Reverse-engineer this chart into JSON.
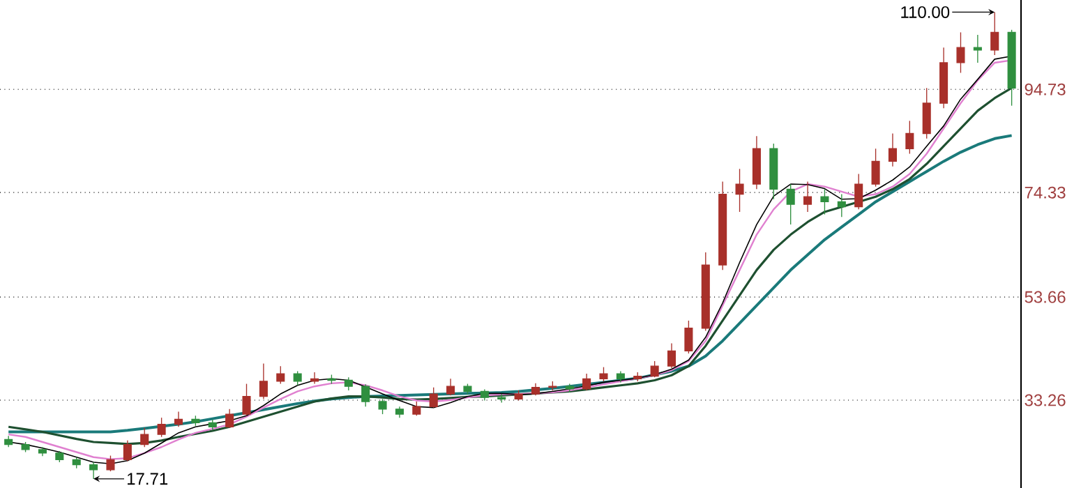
{
  "chart_data": {
    "type": "candlestick",
    "categories": [
      null,
      null,
      null,
      null,
      null,
      null,
      null,
      null,
      null,
      null,
      null,
      null,
      null,
      null,
      null,
      null,
      null,
      null,
      null,
      null,
      null,
      null,
      null,
      null,
      null,
      null,
      null,
      null,
      null,
      null,
      null,
      null,
      null,
      null,
      null,
      null,
      null,
      null,
      null,
      null,
      null,
      null,
      null,
      null,
      null,
      null,
      null,
      null,
      null,
      null,
      null,
      null,
      null,
      null,
      null,
      null,
      null,
      null,
      null,
      null
    ],
    "ohlc": [
      [
        25.5,
        26.2,
        24.0,
        24.5
      ],
      [
        24.5,
        25.0,
        23.0,
        23.5
      ],
      [
        23.5,
        24.0,
        22.2,
        22.8
      ],
      [
        22.8,
        23.2,
        21.0,
        21.5
      ],
      [
        21.5,
        22.0,
        19.8,
        20.5
      ],
      [
        20.5,
        21.0,
        17.71,
        19.5
      ],
      [
        19.5,
        22.3,
        19.2,
        21.5
      ],
      [
        21.5,
        25.3,
        21.2,
        24.5
      ],
      [
        24.5,
        27.8,
        24.0,
        26.5
      ],
      [
        26.5,
        29.8,
        26.0,
        28.5
      ],
      [
        28.5,
        31.0,
        28.0,
        29.5
      ],
      [
        29.5,
        30.2,
        28.2,
        28.8
      ],
      [
        28.8,
        29.4,
        27.3,
        28.0
      ],
      [
        28.0,
        31.5,
        27.8,
        30.5
      ],
      [
        30.5,
        36.5,
        30.2,
        34.0
      ],
      [
        34.0,
        40.5,
        33.5,
        37.0
      ],
      [
        37.0,
        40.0,
        36.5,
        38.5
      ],
      [
        38.5,
        39.0,
        36.2,
        37.0
      ],
      [
        37.0,
        38.8,
        36.5,
        37.5
      ],
      [
        37.5,
        38.3,
        36.5,
        37.2
      ],
      [
        37.2,
        37.8,
        35.2,
        36.0
      ],
      [
        36.0,
        36.4,
        32.0,
        33.0
      ],
      [
        33.0,
        33.5,
        30.5,
        31.5
      ],
      [
        31.5,
        32.0,
        29.8,
        30.5
      ],
      [
        30.5,
        33.0,
        30.2,
        32.0
      ],
      [
        32.0,
        35.8,
        31.8,
        34.5
      ],
      [
        34.5,
        37.5,
        34.2,
        36.0
      ],
      [
        36.0,
        36.5,
        34.5,
        35.0
      ],
      [
        35.0,
        35.4,
        33.2,
        33.8
      ],
      [
        33.8,
        34.5,
        32.8,
        33.5
      ],
      [
        33.5,
        35.2,
        33.2,
        34.5
      ],
      [
        34.5,
        36.6,
        34.2,
        35.8
      ],
      [
        35.8,
        37.0,
        35.2,
        36.0
      ],
      [
        36.0,
        36.5,
        34.8,
        35.5
      ],
      [
        35.5,
        38.5,
        35.2,
        37.5
      ],
      [
        37.5,
        39.8,
        37.0,
        38.5
      ],
      [
        38.5,
        39.0,
        36.8,
        37.5
      ],
      [
        37.5,
        38.8,
        37.0,
        38.0
      ],
      [
        38.0,
        41.0,
        37.8,
        40.0
      ],
      [
        40.0,
        44.5,
        39.6,
        43.0
      ],
      [
        43.0,
        49.0,
        42.5,
        47.5
      ],
      [
        47.5,
        62.5,
        47.0,
        60.0
      ],
      [
        60.0,
        76.5,
        59.0,
        74.0
      ],
      [
        74.0,
        79.0,
        70.5,
        76.0
      ],
      [
        76.0,
        85.5,
        75.0,
        83.0
      ],
      [
        83.0,
        84.0,
        73.0,
        75.0
      ],
      [
        75.0,
        76.0,
        68.0,
        72.0
      ],
      [
        72.0,
        76.5,
        70.5,
        73.5
      ],
      [
        73.5,
        75.0,
        70.0,
        72.5
      ],
      [
        72.5,
        74.0,
        69.5,
        71.5
      ],
      [
        71.5,
        78.0,
        71.0,
        76.0
      ],
      [
        76.0,
        83.0,
        75.5,
        80.5
      ],
      [
        80.5,
        86.0,
        79.5,
        83.0
      ],
      [
        83.0,
        88.5,
        82.0,
        86.0
      ],
      [
        86.0,
        95.0,
        85.0,
        92.0
      ],
      [
        92.0,
        103.0,
        91.0,
        100.0
      ],
      [
        100.0,
        106.0,
        98.0,
        103.0
      ],
      [
        103.0,
        105.5,
        100.0,
        102.5
      ],
      [
        102.5,
        110.0,
        101.5,
        106.0
      ],
      [
        106.0,
        106.5,
        91.5,
        95.0
      ]
    ],
    "colors": [
      "#2f8f3f",
      "#2f8f3f",
      "#2f8f3f",
      "#2f8f3f",
      "#2f8f3f",
      "#2f8f3f",
      "#a8302a",
      "#a8302a",
      "#a8302a",
      "#a8302a",
      "#a8302a",
      "#2f8f3f",
      "#2f8f3f",
      "#a8302a",
      "#a8302a",
      "#a8302a",
      "#a8302a",
      "#2f8f3f",
      "#a8302a",
      "#2f8f3f",
      "#2f8f3f",
      "#2f8f3f",
      "#2f8f3f",
      "#2f8f3f",
      "#a8302a",
      "#a8302a",
      "#a8302a",
      "#2f8f3f",
      "#2f8f3f",
      "#2f8f3f",
      "#a8302a",
      "#a8302a",
      "#a8302a",
      "#2f8f3f",
      "#a8302a",
      "#a8302a",
      "#2f8f3f",
      "#a8302a",
      "#a8302a",
      "#a8302a",
      "#a8302a",
      "#a8302a",
      "#a8302a",
      "#a8302a",
      "#a8302a",
      "#2f8f3f",
      "#2f8f3f",
      "#a8302a",
      "#2f8f3f",
      "#2f8f3f",
      "#a8302a",
      "#a8302a",
      "#a8302a",
      "#a8302a",
      "#a8302a",
      "#a8302a",
      "#a8302a",
      "#2f8f3f",
      "#a8302a",
      "#2f8f3f"
    ],
    "series": [
      {
        "type": "line",
        "color": "#1a7a7a",
        "values": [
          27,
          27,
          27,
          27,
          27,
          27,
          27,
          27.3,
          27.7,
          28.1,
          28.5,
          29,
          29.6,
          30.2,
          30.8,
          31.4,
          32,
          32.6,
          33.1,
          33.5,
          33.8,
          34,
          34.1,
          34.2,
          34.3,
          34.4,
          34.5,
          34.6,
          34.7,
          34.8,
          35,
          35.3,
          35.6,
          36,
          36.4,
          36.8,
          37.2,
          37.6,
          38.3,
          39,
          40,
          42,
          45,
          48.5,
          52,
          55.5,
          59,
          62,
          65,
          67.5,
          70,
          72.5,
          74.5,
          76.5,
          78.5,
          80.5,
          82.3,
          83.8,
          85,
          85.6
        ]
      },
      {
        "type": "line",
        "color": "#1e5030",
        "values": [
          28,
          27.5,
          27,
          26.3,
          25.6,
          25,
          24.8,
          24.6,
          24.8,
          25.3,
          26,
          26.6,
          27.2,
          28,
          29,
          30,
          31,
          32,
          33,
          33.6,
          34,
          34,
          33.8,
          33.5,
          33.4,
          33.5,
          33.7,
          33.9,
          34,
          34.2,
          34.4,
          34.6,
          34.8,
          35,
          35.4,
          35.8,
          36.2,
          36.6,
          37.2,
          38.2,
          40,
          44,
          49,
          54,
          59,
          63,
          66,
          68.5,
          70.5,
          71.5,
          72.5,
          73.5,
          75,
          77,
          80,
          83.5,
          87,
          90.5,
          93,
          95
        ]
      },
      {
        "type": "line",
        "color": "#e080d0",
        "values": [
          26.5,
          26,
          25,
          24,
          23,
          22,
          21.6,
          21.8,
          22.8,
          24,
          25.5,
          26.8,
          27.6,
          28.5,
          30,
          31.8,
          33.5,
          35,
          36,
          36.6,
          36.8,
          36.2,
          35.2,
          34,
          33.2,
          33,
          33.3,
          33.8,
          34.2,
          34.4,
          34.5,
          34.6,
          34.8,
          35.2,
          35.8,
          36.4,
          37,
          37.6,
          38.2,
          39.2,
          41,
          45,
          52,
          59,
          66,
          71,
          74.5,
          76,
          75.5,
          74.5,
          73.5,
          74,
          75.5,
          78,
          82,
          87,
          92,
          96.5,
          100,
          100.5
        ]
      },
      {
        "type": "line",
        "color": "#000000",
        "values": [
          25,
          24.5,
          23.8,
          23,
          22,
          21,
          20.7,
          21.3,
          22.8,
          24.8,
          26.8,
          28,
          28.6,
          29.2,
          30.2,
          32.2,
          34.5,
          36.2,
          37.2,
          37.5,
          37.2,
          35.9,
          34.5,
          33.2,
          32,
          31.8,
          32.8,
          34,
          34.6,
          34.6,
          34.4,
          34.5,
          35,
          35.5,
          36.1,
          36.8,
          37.2,
          37.6,
          38.3,
          39.4,
          41.2,
          45.7,
          52.5,
          60.5,
          68,
          73.6,
          76,
          75.9,
          75.1,
          73,
          73.1,
          74.8,
          76.8,
          79.4,
          83.5,
          87.5,
          92.8,
          96.7,
          100.7,
          101.3
        ]
      }
    ],
    "ylim": [
      15.9,
      112.4
    ],
    "yticks": [
      33.26,
      53.66,
      74.33,
      94.73
    ],
    "grid": "y",
    "annotations": [
      "110.00",
      "17.71"
    ]
  }
}
